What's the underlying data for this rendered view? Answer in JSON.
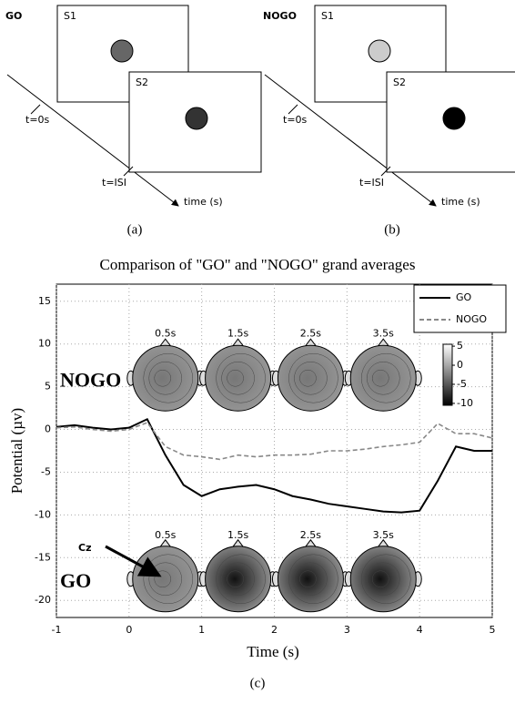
{
  "diagrams": [
    {
      "label": "GO",
      "screens": [
        "S1",
        "S2"
      ],
      "times": [
        "t=0s",
        "t=ISI"
      ],
      "axis": "time (s)",
      "caption": "(a)"
    },
    {
      "label": "NOGO",
      "screens": [
        "S1",
        "S2"
      ],
      "times": [
        "t=0s",
        "t=ISI"
      ],
      "axis": "time (s)",
      "caption": "(b)"
    }
  ],
  "chart_data": {
    "type": "line",
    "title": "Comparison of \"GO\" and \"NOGO\" grand averages",
    "xlabel": "Time  (s)",
    "ylabel": "Potential (µv)",
    "x": [
      -1,
      -0.75,
      -0.5,
      -0.25,
      0,
      0.25,
      0.5,
      0.75,
      1,
      1.25,
      1.5,
      1.75,
      2,
      2.25,
      2.5,
      2.75,
      3,
      3.25,
      3.5,
      3.75,
      4,
      4.25,
      4.5,
      4.75,
      5
    ],
    "series": [
      {
        "name": "GO",
        "color": "#000000",
        "line_style": "solid",
        "values": [
          0.3,
          0.5,
          0.2,
          0,
          0.2,
          1.2,
          -3,
          -6.5,
          -7.8,
          -7,
          -6.7,
          -6.5,
          -7,
          -7.8,
          -8.2,
          -8.7,
          -9,
          -9.3,
          -9.6,
          -9.7,
          -9.5,
          -6,
          -2,
          -2.5,
          -2.5
        ]
      },
      {
        "name": "NOGO",
        "color": "#888888",
        "line_style": "dashed",
        "values": [
          0.2,
          0.3,
          0,
          -0.2,
          0,
          0.8,
          -2,
          -3,
          -3.2,
          -3.5,
          -3,
          -3.2,
          -3,
          -3,
          -2.9,
          -2.5,
          -2.5,
          -2.3,
          -2,
          -1.8,
          -1.5,
          0.7,
          -0.5,
          -0.5,
          -1
        ]
      }
    ],
    "xlim": [
      -1,
      5
    ],
    "ylim": [
      -22,
      17
    ],
    "xticks": [
      -1,
      0,
      1,
      2,
      3,
      4,
      5
    ],
    "yticks": [
      -20,
      -15,
      -10,
      -5,
      0,
      5,
      10,
      15
    ],
    "grid": true,
    "legend": "upper right",
    "annotations": {
      "rows": [
        "NOGO",
        "GO"
      ],
      "times": [
        "0.5s",
        "1.5s",
        "2.5s",
        "3.5s"
      ],
      "electrode": "Cz"
    },
    "colorbar": {
      "lim": [
        -10.5,
        5.5
      ],
      "ticks": [
        5,
        0,
        -5,
        -10
      ]
    },
    "caption": "(c)"
  }
}
